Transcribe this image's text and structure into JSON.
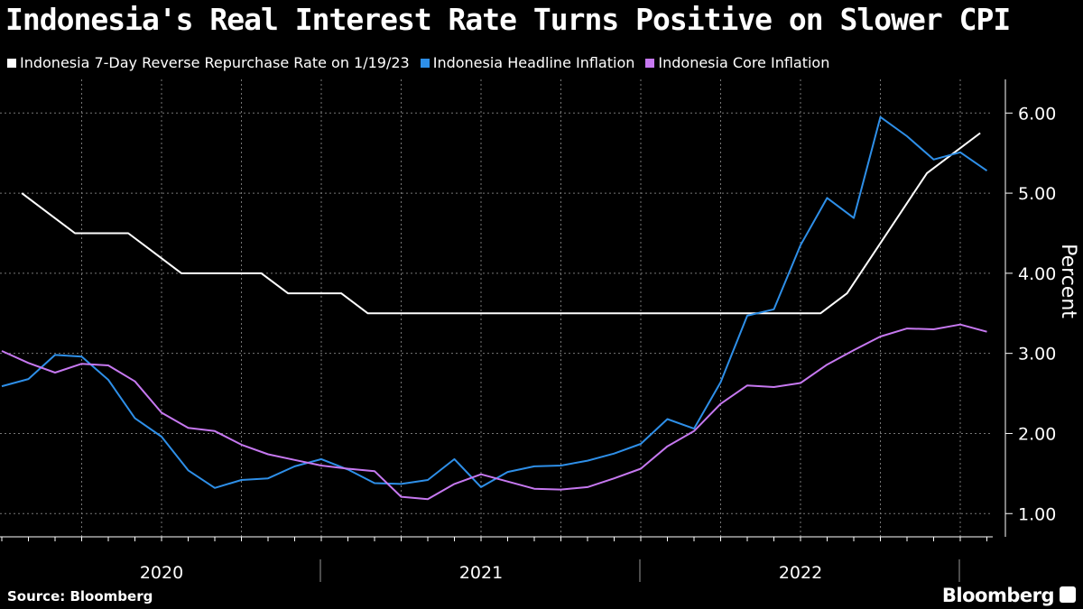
{
  "title": "Indonesia's Real Interest Rate Turns Positive on Slower CPI",
  "source": "Source: Bloomberg",
  "brand": "Bloomberg",
  "chart_data": {
    "type": "line",
    "title": "Indonesia's Real Interest Rate Turns Positive on Slower CPI",
    "ylabel": "Percent",
    "xlabel": "",
    "ylim": [
      0.71,
      6.42
    ],
    "yticks": [
      1,
      2,
      3,
      4,
      5,
      6
    ],
    "ytick_labels": [
      "1.00",
      "2.00",
      "3.00",
      "4.00",
      "5.00",
      "6.00"
    ],
    "x_unit": "months since Dec 2019",
    "xlim": [
      0,
      37.2
    ],
    "year_labels": [
      "2020",
      "2021",
      "2022"
    ],
    "grid": true,
    "legend_position": "top-left",
    "series": [
      {
        "name": "Indonesia 7-Day Reverse Repurchase Rate on 1/19/23",
        "color": "#ffffff",
        "x_start": 0.75,
        "values": [
          5.0,
          4.75,
          4.5,
          4.5,
          4.5,
          4.25,
          4.0,
          4.0,
          4.0,
          4.0,
          3.75,
          3.75,
          3.75,
          3.5,
          3.5,
          3.5,
          3.5,
          3.5,
          3.5,
          3.5,
          3.5,
          3.5,
          3.5,
          3.5,
          3.5,
          3.5,
          3.5,
          3.5,
          3.5,
          3.5,
          3.5,
          3.75,
          4.25,
          4.75,
          5.25,
          5.5,
          5.75
        ]
      },
      {
        "name": "Indonesia Headline Inflation",
        "color": "#2e8fe8",
        "x_start": 0,
        "values": [
          2.59,
          2.68,
          2.98,
          2.96,
          2.67,
          2.19,
          1.96,
          1.54,
          1.32,
          1.42,
          1.44,
          1.59,
          1.68,
          1.55,
          1.38,
          1.37,
          1.42,
          1.68,
          1.33,
          1.52,
          1.59,
          1.6,
          1.66,
          1.75,
          1.87,
          2.18,
          2.06,
          2.64,
          3.47,
          3.55,
          4.35,
          4.94,
          4.69,
          5.95,
          5.71,
          5.42,
          5.51,
          5.28
        ]
      },
      {
        "name": "Indonesia Core Inflation",
        "color": "#c678f0",
        "x_start": 0,
        "values": [
          3.03,
          2.88,
          2.76,
          2.87,
          2.85,
          2.65,
          2.26,
          2.07,
          2.03,
          1.86,
          1.74,
          1.67,
          1.6,
          1.56,
          1.53,
          1.21,
          1.18,
          1.37,
          1.49,
          1.4,
          1.31,
          1.3,
          1.33,
          1.44,
          1.56,
          1.84,
          2.03,
          2.37,
          2.6,
          2.58,
          2.63,
          2.86,
          3.04,
          3.21,
          3.31,
          3.3,
          3.36,
          3.27
        ]
      }
    ]
  }
}
